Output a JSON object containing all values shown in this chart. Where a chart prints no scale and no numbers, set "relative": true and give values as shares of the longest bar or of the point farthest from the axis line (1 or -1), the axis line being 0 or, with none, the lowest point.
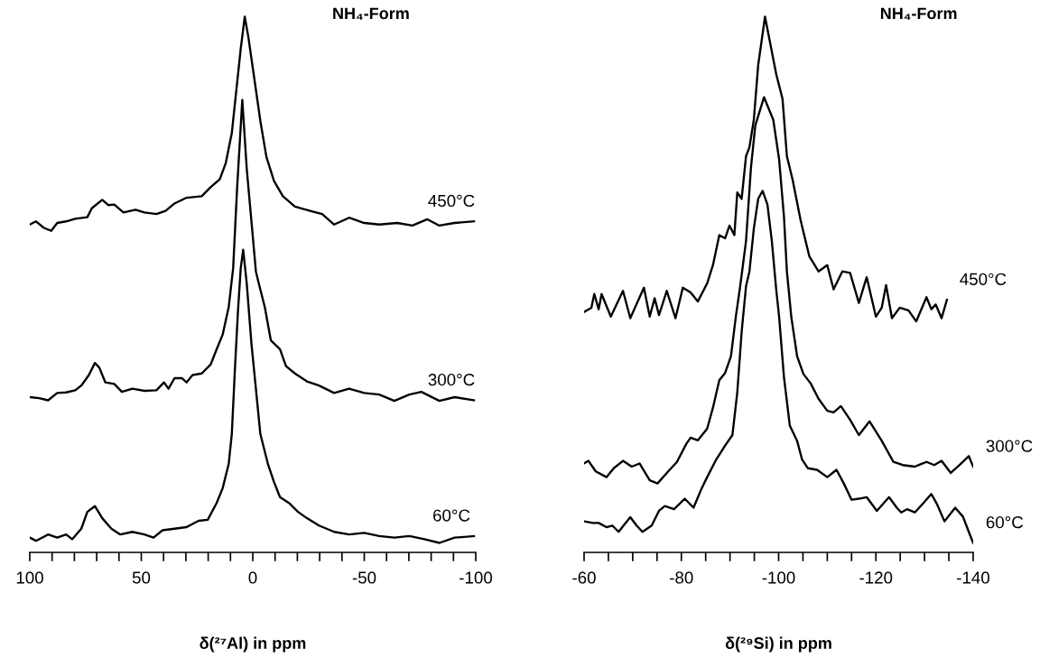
{
  "chart_data": [
    {
      "type": "line",
      "title": "NH₄-Form",
      "xlabel": "δ(²⁷Al) in ppm",
      "relative": true,
      "xlim": [
        100,
        -100
      ],
      "xticks": [
        100,
        {
          "value": 90,
          "label": null
        },
        {
          "value": 80,
          "label": null
        },
        {
          "value": 70,
          "label": null
        },
        {
          "value": 60,
          "label": null
        },
        50,
        {
          "value": 40,
          "label": null
        },
        {
          "value": 30,
          "label": null
        },
        {
          "value": 20,
          "label": null
        },
        {
          "value": 10,
          "label": null
        },
        0,
        {
          "value": -10,
          "label": null
        },
        {
          "value": -20,
          "label": null
        },
        {
          "value": -30,
          "label": null
        },
        {
          "value": -40,
          "label": null
        },
        -50,
        {
          "value": -60,
          "label": null
        },
        {
          "value": -70,
          "label": null
        },
        {
          "value": -80,
          "label": null
        },
        {
          "value": -90,
          "label": null
        },
        -100
      ],
      "tick_labels": "x",
      "series": [
        {
          "name": "450°C",
          "color": "#000000",
          "x": [
            100,
            97.2,
            93.8,
            90.4,
            87.7,
            83.7,
            79.6,
            74.2,
            72.2,
            67.5,
            64.8,
            62.1,
            58.0,
            52.6,
            48.6,
            43.2,
            39.1,
            35.1,
            29.7,
            22.9,
            18.9,
            14.8,
            12.1,
            9.4,
            7.4,
            5.4,
            3.6,
            2.0,
            -0.7,
            -3.4,
            -6.1,
            -9.5,
            -13.5,
            -18.9,
            -25.7,
            -31.1,
            -36.5,
            -43.2,
            -50.0,
            -56.7,
            -64.8,
            -71.6,
            -78.3,
            -83.7,
            -90.5,
            -99.2
          ],
          "values": [
            0.605,
            0.611,
            0.599,
            0.593,
            0.608,
            0.611,
            0.616,
            0.619,
            0.636,
            0.652,
            0.642,
            0.643,
            0.628,
            0.633,
            0.628,
            0.625,
            0.631,
            0.645,
            0.656,
            0.659,
            0.676,
            0.691,
            0.722,
            0.779,
            0.859,
            0.939,
            1.0,
            0.962,
            0.882,
            0.802,
            0.734,
            0.688,
            0.659,
            0.639,
            0.631,
            0.625,
            0.605,
            0.618,
            0.608,
            0.605,
            0.608,
            0.603,
            0.615,
            0.603,
            0.608,
            0.611
          ]
        },
        {
          "name": "300°C",
          "color": "#000000",
          "x": [
            100,
            95.8,
            91.8,
            87.7,
            83.7,
            79.6,
            76.9,
            73.5,
            70.8,
            68.8,
            66.1,
            62.1,
            58.7,
            54.0,
            48.6,
            43.2,
            39.8,
            37.8,
            35.1,
            31.7,
            29.7,
            27.0,
            22.9,
            18.9,
            16.2,
            13.5,
            10.8,
            8.8,
            7.0,
            4.7,
            2.7,
            -1.4,
            -2.7,
            -5.4,
            -8.1,
            -12.2,
            -14.9,
            -18.9,
            -24.3,
            -29.7,
            -36.5,
            -43.2,
            -50.0,
            -56.7,
            -63.5,
            -70.2,
            -75.6,
            -83.7,
            -90.5,
            -99.2
          ],
          "values": [
            0.277,
            0.275,
            0.271,
            0.285,
            0.286,
            0.29,
            0.299,
            0.319,
            0.342,
            0.333,
            0.305,
            0.302,
            0.287,
            0.293,
            0.289,
            0.29,
            0.305,
            0.293,
            0.313,
            0.313,
            0.305,
            0.319,
            0.322,
            0.339,
            0.368,
            0.396,
            0.448,
            0.522,
            0.676,
            0.842,
            0.711,
            0.516,
            0.493,
            0.448,
            0.385,
            0.368,
            0.336,
            0.322,
            0.307,
            0.299,
            0.285,
            0.293,
            0.285,
            0.282,
            0.27,
            0.282,
            0.287,
            0.27,
            0.277,
            0.271
          ]
        },
        {
          "name": "60°C",
          "color": "#000000",
          "x": [
            100,
            97.2,
            91.8,
            87.7,
            83.7,
            81.0,
            76.9,
            74.2,
            70.8,
            67.5,
            63.4,
            59.4,
            54.0,
            48.6,
            44.5,
            40.5,
            35.1,
            29.7,
            24.3,
            20.2,
            16.2,
            13.5,
            10.8,
            9.4,
            8.1,
            6.7,
            5.4,
            4.3,
            2.7,
            0.6,
            -1.4,
            -3.4,
            -6.8,
            -9.5,
            -12.2,
            -16.2,
            -20.3,
            -24.3,
            -29.7,
            -36.5,
            -43.2,
            -50.0,
            -56.7,
            -63.5,
            -70.2,
            -77.0,
            -83.7,
            -90.5,
            -99.2
          ],
          "values": [
            0.01,
            0.004,
            0.016,
            0.01,
            0.016,
            0.007,
            0.027,
            0.059,
            0.07,
            0.047,
            0.027,
            0.016,
            0.021,
            0.016,
            0.01,
            0.024,
            0.027,
            0.03,
            0.042,
            0.044,
            0.076,
            0.104,
            0.15,
            0.207,
            0.322,
            0.436,
            0.522,
            0.557,
            0.493,
            0.379,
            0.293,
            0.207,
            0.15,
            0.116,
            0.087,
            0.076,
            0.059,
            0.047,
            0.033,
            0.021,
            0.016,
            0.019,
            0.013,
            0.01,
            0.013,
            0.007,
            0.0,
            0.01,
            0.013
          ]
        }
      ]
    },
    {
      "type": "line",
      "title": "NH₄-Form",
      "xlabel": "δ(²⁹Si) in ppm",
      "relative": true,
      "xlim": [
        -60,
        -140
      ],
      "xticks": [
        -60,
        {
          "value": -65,
          "label": null
        },
        {
          "value": -70,
          "label": null
        },
        {
          "value": -75,
          "label": null
        },
        -80,
        {
          "value": -85,
          "label": null
        },
        {
          "value": -90,
          "label": null
        },
        {
          "value": -95,
          "label": null
        },
        -100,
        {
          "value": -105,
          "label": null
        },
        {
          "value": -110,
          "label": null
        },
        {
          "value": -115,
          "label": null
        },
        -120,
        {
          "value": -125,
          "label": null
        },
        {
          "value": -130,
          "label": null
        },
        {
          "value": -135,
          "label": null
        },
        -140
      ],
      "tick_labels": "x",
      "series": [
        {
          "name": "450°C",
          "color": "#000000",
          "x": [
            -60.0,
            -61.5,
            -62.1,
            -63.0,
            -63.6,
            -65.5,
            -68.0,
            -69.5,
            -72.3,
            -73.5,
            -74.5,
            -75.4,
            -77.0,
            -78.8,
            -80.3,
            -81.9,
            -83.4,
            -85.3,
            -86.5,
            -87.8,
            -89.0,
            -89.9,
            -90.9,
            -91.5,
            -92.4,
            -93.3,
            -94.0,
            -94.9,
            -95.8,
            -97.2,
            -98.3,
            -99.5,
            -100.8,
            -101.7,
            -102.9,
            -104.5,
            -106.3,
            -108.2,
            -110.0,
            -111.3,
            -113.1,
            -114.7,
            -116.5,
            -118.1,
            -120.0,
            -121.2,
            -122.1,
            -123.3,
            -124.9,
            -126.7,
            -128.3,
            -130.4,
            -131.4,
            -132.3,
            -133.5,
            -134.6
          ],
          "values": [
            0.439,
            0.447,
            0.473,
            0.444,
            0.473,
            0.43,
            0.479,
            0.427,
            0.485,
            0.43,
            0.465,
            0.433,
            0.479,
            0.427,
            0.485,
            0.476,
            0.459,
            0.493,
            0.528,
            0.585,
            0.579,
            0.603,
            0.585,
            0.666,
            0.654,
            0.735,
            0.752,
            0.804,
            0.908,
            1.0,
            0.948,
            0.891,
            0.844,
            0.735,
            0.689,
            0.614,
            0.545,
            0.516,
            0.528,
            0.482,
            0.516,
            0.513,
            0.456,
            0.505,
            0.43,
            0.447,
            0.49,
            0.427,
            0.447,
            0.442,
            0.421,
            0.467,
            0.444,
            0.453,
            0.427,
            0.462
          ]
        },
        {
          "name": "300°C",
          "color": "#000000",
          "x": [
            -60.0,
            -60.9,
            -62.4,
            -64.6,
            -66.1,
            -68.0,
            -69.8,
            -71.4,
            -73.5,
            -75.1,
            -77.3,
            -79.1,
            -81.0,
            -81.9,
            -83.4,
            -85.3,
            -86.5,
            -87.8,
            -89.0,
            -90.2,
            -91.2,
            -92.1,
            -93.3,
            -94.3,
            -95.2,
            -97.0,
            -98.9,
            -100.1,
            -101.1,
            -101.7,
            -102.6,
            -103.8,
            -105.1,
            -106.6,
            -108.2,
            -110.0,
            -111.3,
            -112.8,
            -114.7,
            -116.5,
            -118.7,
            -121.2,
            -123.6,
            -125.5,
            -128.0,
            -130.4,
            -132.0,
            -133.5,
            -135.4,
            -137.2,
            -139.1,
            -140.0
          ],
          "values": [
            0.151,
            0.156,
            0.136,
            0.125,
            0.142,
            0.156,
            0.145,
            0.151,
            0.119,
            0.113,
            0.136,
            0.154,
            0.188,
            0.2,
            0.195,
            0.217,
            0.257,
            0.309,
            0.323,
            0.355,
            0.43,
            0.488,
            0.574,
            0.712,
            0.793,
            0.847,
            0.804,
            0.729,
            0.62,
            0.516,
            0.43,
            0.355,
            0.321,
            0.303,
            0.274,
            0.251,
            0.248,
            0.26,
            0.234,
            0.205,
            0.231,
            0.194,
            0.154,
            0.148,
            0.145,
            0.154,
            0.148,
            0.156,
            0.133,
            0.148,
            0.165,
            0.145
          ]
        },
        {
          "name": "60°C",
          "color": "#000000",
          "x": [
            -60.0,
            -61.8,
            -63.0,
            -64.6,
            -65.8,
            -67.1,
            -68.3,
            -69.5,
            -70.8,
            -72.0,
            -73.9,
            -75.4,
            -76.6,
            -78.5,
            -80.7,
            -82.5,
            -84.1,
            -85.3,
            -87.2,
            -89.0,
            -90.5,
            -91.5,
            -92.4,
            -93.3,
            -94.0,
            -94.9,
            -95.8,
            -96.7,
            -97.7,
            -98.6,
            -99.5,
            -100.1,
            -101.1,
            -102.3,
            -103.8,
            -104.8,
            -106.0,
            -107.9,
            -110.0,
            -111.9,
            -113.4,
            -115.0,
            -116.5,
            -118.1,
            -120.2,
            -122.7,
            -124.3,
            -125.2,
            -126.4,
            -128.0,
            -129.5,
            -131.4,
            -132.6,
            -134.1,
            -136.3,
            -137.9,
            -139.1,
            -140.0
          ],
          "values": [
            0.041,
            0.038,
            0.038,
            0.03,
            0.033,
            0.021,
            0.035,
            0.049,
            0.033,
            0.021,
            0.033,
            0.061,
            0.07,
            0.064,
            0.084,
            0.067,
            0.102,
            0.125,
            0.159,
            0.185,
            0.205,
            0.286,
            0.401,
            0.488,
            0.516,
            0.597,
            0.654,
            0.669,
            0.643,
            0.574,
            0.482,
            0.43,
            0.315,
            0.223,
            0.194,
            0.159,
            0.142,
            0.139,
            0.125,
            0.139,
            0.113,
            0.082,
            0.084,
            0.087,
            0.061,
            0.087,
            0.067,
            0.058,
            0.064,
            0.058,
            0.073,
            0.093,
            0.073,
            0.041,
            0.067,
            0.05,
            0.021,
            0.0
          ]
        }
      ]
    }
  ]
}
